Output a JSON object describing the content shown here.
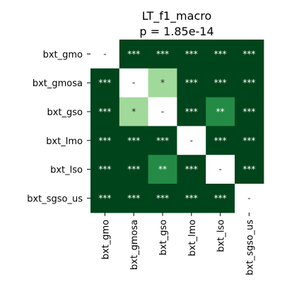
{
  "chart_data": {
    "type": "heatmap",
    "title": "LT_f1_macro",
    "subtitle": "p = 1.85e-14",
    "row_labels": [
      "bxt_gmo",
      "bxt_gmosa",
      "bxt_gso",
      "bxt_lmo",
      "bxt_lso",
      "bxt_sgso_us"
    ],
    "col_labels": [
      "bxt_gmo",
      "bxt_gmosa",
      "bxt_gso",
      "bxt_lmo",
      "bxt_lso",
      "bxt_sgso_us"
    ],
    "cells": [
      [
        "-",
        "***",
        "***",
        "***",
        "***",
        "***"
      ],
      [
        "***",
        "-",
        "*",
        "***",
        "***",
        "***"
      ],
      [
        "***",
        "*",
        "-",
        "***",
        "**",
        "***"
      ],
      [
        "***",
        "***",
        "***",
        "-",
        "***",
        "***"
      ],
      [
        "***",
        "***",
        "**",
        "***",
        "-",
        "***"
      ],
      [
        "***",
        "***",
        "***",
        "***",
        "***",
        "-"
      ]
    ],
    "colors": {
      "-": "#ffffff",
      "*": "#a1d99b",
      "**": "#238b45",
      "***": "#00441b"
    },
    "text_colors": {
      "-": "#262626",
      "*": "#262626",
      "**": "#ffffff",
      "***": "#ffffff"
    },
    "legend": false,
    "grid": false
  }
}
